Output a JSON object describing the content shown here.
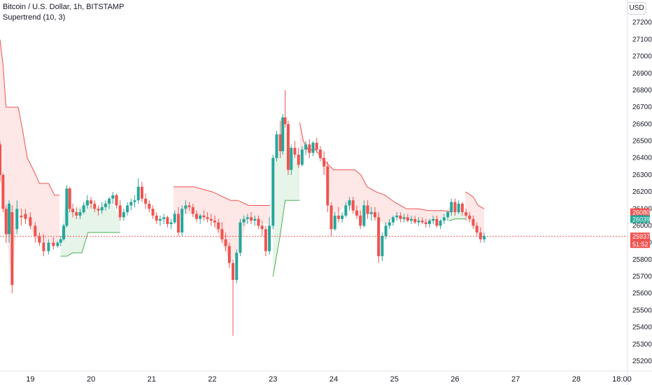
{
  "legend": {
    "symbol": "Bitcoin / U.S. Dollar, 1h, BITSTAMP",
    "indicator": "Supertrend (10, 3)"
  },
  "currency_button": "USD",
  "colors": {
    "up": "#26a69a",
    "down": "#ef5350",
    "supertrend_down_fill": "#fde7e7",
    "supertrend_up_fill": "#e6f4ea",
    "supertrend_up_line": "#4caf50",
    "supertrend_down_line": "#ef5350",
    "price_line": "#ef5350",
    "upper_tag": "#ef5350",
    "lower_tag": "#26a69a"
  },
  "chart_data": {
    "type": "candlestick",
    "title": "Bitcoin / U.S. Dollar, 1h, BITSTAMP",
    "indicator": "Supertrend (10, 3)",
    "y_axis": {
      "min": 25200,
      "max": 27300,
      "ticks": [
        "27200",
        "27100",
        "27000",
        "26900",
        "26800",
        "26700",
        "26600",
        "26500",
        "26400",
        "26300",
        "26200",
        "26100",
        "26000",
        "25900",
        "25800",
        "25700",
        "25600",
        "25500",
        "25400",
        "25300",
        "25200"
      ]
    },
    "x_axis": {
      "labels": [
        "19",
        "20",
        "21",
        "22",
        "23",
        "24",
        "25",
        "26",
        "27",
        "28",
        "18:00"
      ],
      "label_times": [
        0.5,
        1.5,
        2.5,
        3.5,
        4.5,
        5.5,
        6.5,
        7.5,
        8.5,
        9.5,
        10.25
      ],
      "range": [
        0,
        10.32
      ]
    },
    "candles": [
      [
        0.0,
        26480,
        26500,
        26260,
        26300
      ],
      [
        0.05,
        26300,
        26310,
        26080,
        26100
      ],
      [
        0.1,
        26100,
        26120,
        25900,
        25950
      ],
      [
        0.15,
        25950,
        26150,
        25900,
        26130
      ],
      [
        0.2,
        26080,
        26120,
        25600,
        25650
      ],
      [
        0.28,
        25980,
        26150,
        25950,
        26100
      ],
      [
        0.35,
        26060,
        26100,
        26000,
        26050
      ],
      [
        0.42,
        26070,
        26100,
        26010,
        26040
      ],
      [
        0.5,
        26050,
        26080,
        25980,
        26000
      ],
      [
        0.58,
        26000,
        26020,
        25900,
        25940
      ],
      [
        0.65,
        25940,
        25960,
        25880,
        25900
      ],
      [
        0.72,
        25900,
        25950,
        25820,
        25850
      ],
      [
        0.8,
        25850,
        25920,
        25830,
        25900
      ],
      [
        0.88,
        25900,
        25930,
        25860,
        25880
      ],
      [
        0.95,
        25880,
        25910,
        25870,
        25900
      ],
      [
        1.0,
        25900,
        25940,
        25880,
        25920
      ],
      [
        1.05,
        25920,
        26010,
        25910,
        26000
      ],
      [
        1.1,
        26000,
        26240,
        25990,
        26220
      ],
      [
        1.15,
        26220,
        26230,
        26080,
        26100
      ],
      [
        1.2,
        26100,
        26130,
        26050,
        26080
      ],
      [
        1.26,
        26080,
        26110,
        26040,
        26060
      ],
      [
        1.32,
        26060,
        26100,
        26040,
        26080
      ],
      [
        1.38,
        26080,
        26140,
        26070,
        26120
      ],
      [
        1.44,
        26120,
        26180,
        26100,
        26150
      ],
      [
        1.5,
        26150,
        26170,
        26100,
        26130
      ],
      [
        1.56,
        26130,
        26150,
        26080,
        26100
      ],
      [
        1.62,
        26100,
        26120,
        26060,
        26090
      ],
      [
        1.68,
        26090,
        26140,
        26070,
        26110
      ],
      [
        1.74,
        26110,
        26150,
        26090,
        26130
      ],
      [
        1.8,
        26130,
        26170,
        26100,
        26160
      ],
      [
        1.86,
        26160,
        26200,
        26130,
        26180
      ],
      [
        1.92,
        26180,
        26190,
        26100,
        26120
      ],
      [
        1.98,
        26120,
        26150,
        26030,
        26050
      ],
      [
        2.04,
        26050,
        26100,
        26030,
        26080
      ],
      [
        2.1,
        26080,
        26140,
        26060,
        26120
      ],
      [
        2.16,
        26120,
        26160,
        26090,
        26140
      ],
      [
        2.22,
        26140,
        26180,
        26110,
        26150
      ],
      [
        2.28,
        26150,
        26280,
        26130,
        26230
      ],
      [
        2.34,
        26230,
        26260,
        26140,
        26160
      ],
      [
        2.4,
        26160,
        26190,
        26100,
        26130
      ],
      [
        2.46,
        26130,
        26150,
        26080,
        26100
      ],
      [
        2.52,
        26100,
        26120,
        26040,
        26060
      ],
      [
        2.58,
        26060,
        26080,
        26010,
        26030
      ],
      [
        2.64,
        26030,
        26060,
        26000,
        26040
      ],
      [
        2.7,
        26040,
        26070,
        26010,
        26050
      ],
      [
        2.76,
        26050,
        26060,
        25990,
        26010
      ],
      [
        2.82,
        26010,
        26040,
        25980,
        26020
      ],
      [
        2.88,
        26020,
        26090,
        26010,
        26070
      ],
      [
        2.94,
        26070,
        26110,
        25940,
        25960
      ],
      [
        3.0,
        25960,
        26120,
        25940,
        26100
      ],
      [
        3.06,
        26100,
        26150,
        26070,
        26120
      ],
      [
        3.12,
        26120,
        26140,
        26090,
        26110
      ],
      [
        3.18,
        26110,
        26130,
        26050,
        26070
      ],
      [
        3.24,
        26070,
        26090,
        26020,
        26040
      ],
      [
        3.3,
        26040,
        26070,
        26010,
        26060
      ],
      [
        3.36,
        26060,
        26090,
        26030,
        26050
      ],
      [
        3.42,
        26050,
        26080,
        26020,
        26040
      ],
      [
        3.48,
        26040,
        26070,
        26000,
        26030
      ],
      [
        3.54,
        26030,
        26060,
        25990,
        26020
      ],
      [
        3.6,
        26020,
        26040,
        25960,
        25980
      ],
      [
        3.66,
        25980,
        26020,
        25900,
        25920
      ],
      [
        3.72,
        25920,
        25960,
        25850,
        25880
      ],
      [
        3.78,
        25880,
        25900,
        25750,
        25780
      ],
      [
        3.84,
        25780,
        25800,
        25350,
        25680
      ],
      [
        3.9,
        25680,
        25860,
        25660,
        25840
      ],
      [
        3.96,
        25840,
        26040,
        25820,
        26020
      ],
      [
        4.02,
        26020,
        26060,
        26000,
        26040
      ],
      [
        4.08,
        26040,
        26070,
        26010,
        26050
      ],
      [
        4.14,
        26050,
        26080,
        26010,
        26030
      ],
      [
        4.2,
        26030,
        26060,
        26000,
        26040
      ],
      [
        4.26,
        26040,
        26060,
        25980,
        26000
      ],
      [
        4.32,
        26000,
        26030,
        25940,
        25980
      ],
      [
        4.38,
        25980,
        26000,
        25820,
        25850
      ],
      [
        4.44,
        25850,
        26050,
        25830,
        26000
      ],
      [
        4.5,
        26000,
        26420,
        25980,
        26400
      ],
      [
        4.56,
        26400,
        26560,
        26380,
        26540
      ],
      [
        4.62,
        26540,
        26620,
        26400,
        26440
      ],
      [
        4.66,
        26440,
        26660,
        26420,
        26640
      ],
      [
        4.7,
        26640,
        26800,
        26580,
        26600
      ],
      [
        4.75,
        26600,
        26620,
        26300,
        26330
      ],
      [
        4.8,
        26330,
        26480,
        26300,
        26460
      ],
      [
        4.86,
        26460,
        26500,
        26400,
        26420
      ],
      [
        4.92,
        26420,
        26460,
        26340,
        26360
      ],
      [
        4.98,
        26360,
        26470,
        26350,
        26450
      ],
      [
        5.04,
        26450,
        26500,
        26420,
        26480
      ],
      [
        5.1,
        26480,
        26510,
        26400,
        26430
      ],
      [
        5.16,
        26430,
        26500,
        26410,
        26490
      ],
      [
        5.22,
        26490,
        26520,
        26430,
        26450
      ],
      [
        5.28,
        26450,
        26470,
        26380,
        26400
      ],
      [
        5.34,
        26400,
        26440,
        26300,
        26350
      ],
      [
        5.4,
        26350,
        26380,
        26080,
        26120
      ],
      [
        5.46,
        26120,
        26140,
        25940,
        25980
      ],
      [
        5.52,
        25980,
        26080,
        25970,
        26060
      ],
      [
        5.58,
        26060,
        26110,
        26020,
        26040
      ],
      [
        5.64,
        26040,
        26080,
        26020,
        26060
      ],
      [
        5.7,
        26060,
        26140,
        26050,
        26120
      ],
      [
        5.76,
        26120,
        26170,
        26090,
        26150
      ],
      [
        5.82,
        26150,
        26170,
        26070,
        26090
      ],
      [
        5.88,
        26090,
        26120,
        26040,
        26060
      ],
      [
        5.94,
        26060,
        26090,
        25980,
        26000
      ],
      [
        6.0,
        26000,
        26150,
        25990,
        26120
      ],
      [
        6.06,
        26120,
        26150,
        26040,
        26070
      ],
      [
        6.12,
        26070,
        26110,
        26030,
        26080
      ],
      [
        6.18,
        26080,
        26110,
        26030,
        26050
      ],
      [
        6.24,
        26050,
        26080,
        25780,
        25820
      ],
      [
        6.3,
        25820,
        25960,
        25790,
        25940
      ],
      [
        6.36,
        25940,
        26020,
        25920,
        26000
      ],
      [
        6.42,
        26000,
        26040,
        25980,
        26020
      ],
      [
        6.48,
        26020,
        26060,
        26000,
        26050
      ],
      [
        6.54,
        26050,
        26080,
        26030,
        26060
      ],
      [
        6.6,
        26060,
        26080,
        26020,
        26040
      ],
      [
        6.66,
        26040,
        26070,
        26020,
        26050
      ],
      [
        6.72,
        26050,
        26070,
        26020,
        26030
      ],
      [
        6.78,
        26030,
        26060,
        26010,
        26040
      ],
      [
        6.84,
        26040,
        26060,
        26010,
        26020
      ],
      [
        6.9,
        26020,
        26050,
        26000,
        26030
      ],
      [
        6.96,
        26030,
        26050,
        26010,
        26020
      ],
      [
        7.02,
        26020,
        26040,
        25990,
        26010
      ],
      [
        7.08,
        26010,
        26040,
        25990,
        26030
      ],
      [
        7.14,
        26030,
        26060,
        26010,
        26040
      ],
      [
        7.2,
        26040,
        26060,
        25990,
        26000
      ],
      [
        7.26,
        26000,
        26040,
        25980,
        26030
      ],
      [
        7.32,
        26030,
        26070,
        26010,
        26050
      ],
      [
        7.38,
        26050,
        26090,
        26030,
        26080
      ],
      [
        7.44,
        26080,
        26160,
        26060,
        26140
      ],
      [
        7.5,
        26140,
        26160,
        26060,
        26080
      ],
      [
        7.56,
        26080,
        26150,
        26070,
        26130
      ],
      [
        7.62,
        26130,
        26140,
        26060,
        26080
      ],
      [
        7.68,
        26080,
        26100,
        26030,
        26060
      ],
      [
        7.74,
        26060,
        26080,
        26020,
        26040
      ],
      [
        7.8,
        26040,
        26060,
        25980,
        26000
      ],
      [
        7.86,
        26000,
        26020,
        25940,
        25960
      ],
      [
        7.92,
        25960,
        25990,
        25900,
        25920
      ],
      [
        7.98,
        25920,
        25960,
        25900,
        25940
      ]
    ],
    "supertrend": {
      "down_segments": [
        [
          [
            0.0,
            27100
          ],
          [
            0.05,
            26950
          ],
          [
            0.1,
            26700
          ],
          [
            0.2,
            26700
          ],
          [
            0.3,
            26700
          ],
          [
            0.38,
            26550
          ],
          [
            0.45,
            26400
          ],
          [
            0.55,
            26330
          ],
          [
            0.65,
            26250
          ],
          [
            0.8,
            26250
          ],
          [
            0.9,
            26180
          ],
          [
            0.98,
            26180
          ]
        ],
        [
          [
            2.86,
            26230
          ],
          [
            3.2,
            26230
          ],
          [
            3.5,
            26200
          ],
          [
            3.8,
            26150
          ],
          [
            3.92,
            26150
          ],
          [
            4.1,
            26120
          ],
          [
            4.45,
            26120
          ]
        ],
        [
          [
            4.94,
            26610
          ],
          [
            5.0,
            26500
          ],
          [
            5.08,
            26450
          ],
          [
            5.2,
            26450
          ],
          [
            5.3,
            26400
          ],
          [
            5.5,
            26330
          ],
          [
            5.7,
            26330
          ],
          [
            5.85,
            26330
          ],
          [
            5.95,
            26300
          ],
          [
            6.05,
            26230
          ],
          [
            6.2,
            26200
          ],
          [
            6.35,
            26180
          ],
          [
            6.5,
            26140
          ],
          [
            6.6,
            26120
          ],
          [
            6.7,
            26100
          ],
          [
            6.9,
            26100
          ],
          [
            7.05,
            26090
          ],
          [
            7.3,
            26090
          ],
          [
            7.45,
            26080
          ]
        ],
        [
          [
            7.67,
            26200
          ],
          [
            7.72,
            26190
          ],
          [
            7.8,
            26170
          ],
          [
            7.88,
            26120
          ],
          [
            7.98,
            26100
          ]
        ]
      ],
      "up_segments": [
        [
          [
            1.0,
            25820
          ],
          [
            1.1,
            25820
          ],
          [
            1.2,
            25840
          ],
          [
            1.35,
            25840
          ],
          [
            1.45,
            25960
          ],
          [
            1.6,
            25960
          ],
          [
            1.8,
            25960
          ],
          [
            1.98,
            25960
          ]
        ],
        [
          [
            4.5,
            25700
          ],
          [
            4.62,
            25950
          ],
          [
            4.7,
            26150
          ],
          [
            4.78,
            26150
          ],
          [
            4.9,
            26150
          ],
          [
            4.94,
            26150
          ]
        ],
        [
          [
            7.4,
            26030
          ],
          [
            7.5,
            26040
          ],
          [
            7.6,
            26040
          ],
          [
            7.67,
            26040
          ]
        ]
      ]
    },
    "last_price": 25937,
    "price_tags": {
      "upper": "26080",
      "lower": "26039",
      "last": "25937",
      "countdown": "51:52"
    }
  }
}
